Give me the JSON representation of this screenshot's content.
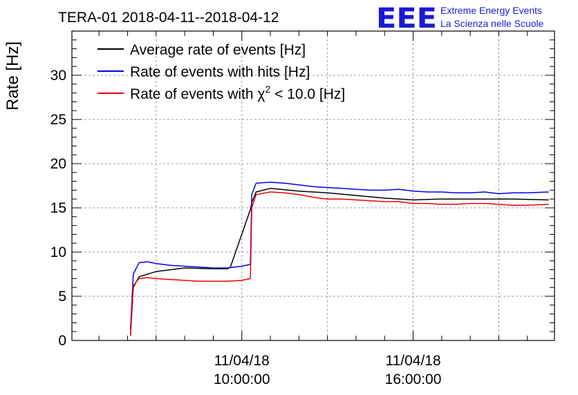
{
  "chart_data": {
    "type": "line",
    "title": "TERA-01 2018-04-11--2018-04-12",
    "ylabel": "Rate [Hz]",
    "xlabel": "",
    "ylim": [
      0,
      35
    ],
    "y_ticks": [
      0,
      5,
      10,
      15,
      20,
      25,
      30
    ],
    "x_unit": "hours since 2018-04-11 00:00",
    "xlim": [
      4.05,
      20.95
    ],
    "x_ticks": [
      {
        "value": 10,
        "line1": "11/04/18",
        "line2": "10:00:00"
      },
      {
        "value": 16,
        "line1": "11/04/18",
        "line2": "16:00:00"
      }
    ],
    "grid": true,
    "legend_position": "top-left",
    "series": [
      {
        "name": "Average rate of events [Hz]",
        "color": "#000000",
        "x": [
          6.1,
          6.2,
          6.4,
          7,
          8,
          9,
          9.5,
          9.6,
          10.3,
          10.35,
          10.5,
          11,
          12,
          13,
          14,
          15,
          16,
          17,
          18,
          19.5,
          20.75
        ],
        "y": [
          0.5,
          6,
          7.2,
          7.8,
          8.2,
          8.1,
          8.1,
          8.3,
          14.8,
          15.6,
          16.8,
          17.2,
          16.9,
          16.7,
          16.4,
          16.1,
          15.9,
          16,
          16,
          16,
          15.9
        ]
      },
      {
        "name": "Rate of events with hits [Hz]",
        "color": "#0000ee",
        "x": [
          6.1,
          6.2,
          6.4,
          6.7,
          7,
          7.5,
          8,
          8.5,
          9,
          9.5,
          10,
          10.3,
          10.35,
          10.5,
          11,
          11.5,
          12,
          12.5,
          13,
          13.5,
          14,
          14.5,
          15,
          15.5,
          16,
          16.5,
          17,
          17.5,
          18,
          18.5,
          19,
          19.5,
          20,
          20.75
        ],
        "y": [
          1.2,
          7.5,
          8.8,
          8.9,
          8.7,
          8.5,
          8.4,
          8.3,
          8.2,
          8.2,
          8.4,
          8.6,
          16.5,
          17.8,
          17.9,
          17.8,
          17.6,
          17.4,
          17.3,
          17.2,
          17.1,
          17.0,
          17.0,
          17.1,
          16.9,
          16.8,
          16.8,
          16.7,
          16.7,
          16.8,
          16.6,
          16.7,
          16.7,
          16.8
        ]
      },
      {
        "name": "Rate of events with χ² < 10.0 [Hz]",
        "color": "#ee0000",
        "x": [
          6.1,
          6.2,
          6.4,
          6.7,
          7,
          7.5,
          8,
          8.5,
          9,
          9.5,
          10,
          10.3,
          10.35,
          10.5,
          11,
          11.5,
          12,
          12.5,
          13,
          13.5,
          14,
          14.5,
          15,
          15.5,
          16,
          16.5,
          17,
          17.5,
          18,
          18.5,
          19,
          19.5,
          20,
          20.75
        ],
        "y": [
          0.5,
          6.2,
          7.0,
          7.1,
          7.0,
          6.9,
          6.8,
          6.7,
          6.7,
          6.7,
          6.8,
          7.0,
          15.0,
          16.5,
          16.8,
          16.7,
          16.5,
          16.2,
          16.0,
          16.0,
          15.9,
          15.8,
          15.7,
          15.7,
          15.5,
          15.5,
          15.4,
          15.4,
          15.5,
          15.5,
          15.4,
          15.3,
          15.3,
          15.4
        ]
      }
    ]
  },
  "logo": {
    "letters": "EEE",
    "line1": "Extreme Energy Events",
    "line2": "La Scienza nelle Scuole"
  },
  "legend": {
    "items": [
      {
        "label": "Average rate of events [Hz]"
      },
      {
        "label": "Rate of events with hits [Hz]"
      },
      {
        "label_prefix": "Rate of events with χ",
        "label_sup": "2",
        "label_suffix": " < 10.0 [Hz]"
      }
    ]
  }
}
